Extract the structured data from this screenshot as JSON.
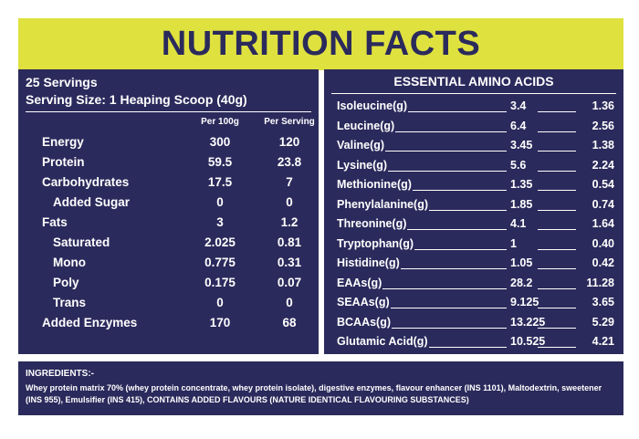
{
  "title": "NUTRITION FACTS",
  "servings": "25 Servings",
  "serving_size": "Serving Size: 1 Heaping Scoop (40g)",
  "columns": [
    "Per 100g",
    "Per Serving"
  ],
  "nutrients": [
    {
      "label": "Energy",
      "per100": "300",
      "perServing": "120",
      "sub": false
    },
    {
      "label": "Protein",
      "per100": "59.5",
      "perServing": "23.8",
      "sub": false
    },
    {
      "label": "Carbohydrates",
      "per100": "17.5",
      "perServing": "7",
      "sub": false
    },
    {
      "label": "Added Sugar",
      "per100": "0",
      "perServing": "0",
      "sub": true
    },
    {
      "label": "Fats",
      "per100": "3",
      "perServing": "1.2",
      "sub": false
    },
    {
      "label": "Saturated",
      "per100": "2.025",
      "perServing": "0.81",
      "sub": true
    },
    {
      "label": "Mono",
      "per100": "0.775",
      "perServing": "0.31",
      "sub": true
    },
    {
      "label": "Poly",
      "per100": "0.175",
      "perServing": "0.07",
      "sub": true
    },
    {
      "label": "Trans",
      "per100": "0",
      "perServing": "0",
      "sub": true
    },
    {
      "label": "Added Enzymes",
      "per100": "170",
      "perServing": "68",
      "sub": false
    }
  ],
  "amino_title": "ESSENTIAL AMINO ACIDS",
  "amino_acids": [
    {
      "name": "Isoleucine(g)",
      "per100": "3.4",
      "perServing": "1.36"
    },
    {
      "name": "Leucine(g)",
      "per100": "6.4",
      "perServing": "2.56"
    },
    {
      "name": "Valine(g)",
      "per100": "3.45",
      "perServing": "1.38"
    },
    {
      "name": "Lysine(g)",
      "per100": "5.6",
      "perServing": "2.24"
    },
    {
      "name": "Methionine(g)",
      "per100": "1.35",
      "perServing": "0.54"
    },
    {
      "name": "Phenylalanine(g)",
      "per100": "1.85",
      "perServing": "0.74"
    },
    {
      "name": "Threonine(g)",
      "per100": "4.1",
      "perServing": "1.64"
    },
    {
      "name": "Tryptophan(g)",
      "per100": "1",
      "perServing": "0.40"
    },
    {
      "name": "Histidine(g)",
      "per100": "1.05",
      "perServing": "0.42"
    },
    {
      "name": "EAAs(g)",
      "per100": "28.2",
      "perServing": "11.28"
    },
    {
      "name": "SEAAs(g)",
      "per100": "9.125",
      "perServing": "3.65"
    },
    {
      "name": "BCAAs(g)",
      "per100": "13.225",
      "perServing": "5.29"
    },
    {
      "name": "Glutamic Acid(g)",
      "per100": "10.525",
      "perServing": "4.21"
    }
  ],
  "ingredients_title": "INGREDIENTS:-",
  "ingredients_text": "Whey protein matrix 70% (whey protein concentrate, whey protein isolate), digestive enzymes, flavour enhancer (INS 1101), Maltodextrin, sweetener (INS 955), Emulsifier (INS 415), CONTAINS ADDED FLAVOURS (NATURE IDENTICAL  FLAVOURING SUBSTANCES)",
  "colors": {
    "navy": "#2b2a5c",
    "lime": "#dfe13f",
    "white": "#ffffff"
  }
}
